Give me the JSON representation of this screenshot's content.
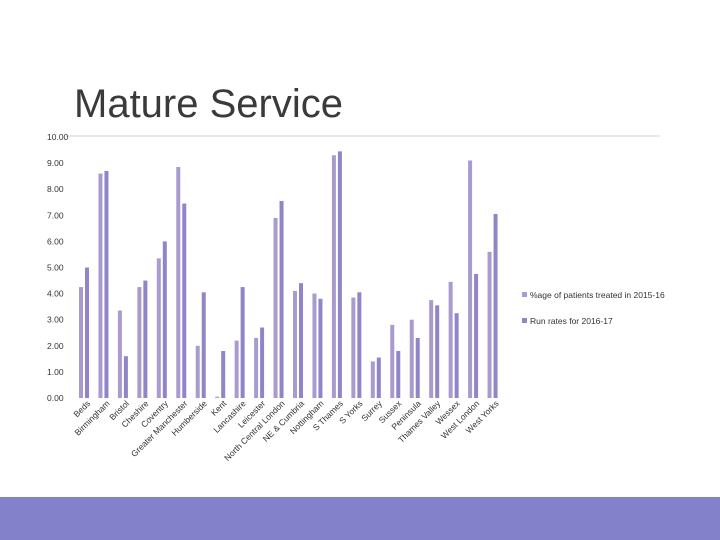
{
  "slide": {
    "title": "Mature Service",
    "footer_color": "#8381c9"
  },
  "chart_data": {
    "type": "bar",
    "title": "",
    "xlabel": "",
    "ylabel": "",
    "ylim": [
      0,
      10
    ],
    "yticks": [
      "0.00",
      "1.00",
      "2.00",
      "3.00",
      "4.00",
      "5.00",
      "6.00",
      "7.00",
      "8.00",
      "9.00",
      "10.00"
    ],
    "grid": false,
    "legend_position": "right",
    "categories": [
      "Beds",
      "Birmingham",
      "Bristol",
      "Cheshire",
      "Coventry",
      "Greater Manchester",
      "Humberside",
      "Kent",
      "Lancashire",
      "Leicester",
      "North Central London",
      "NE & Cumbria",
      "Nottingham",
      "S Thames",
      "S Yorks",
      "Surrey",
      "Sussex",
      "Peninsula",
      "Thames Valley",
      "Wessex",
      "West London",
      "West Yorks"
    ],
    "series": [
      {
        "name": "%age of patients treated in 2015-16",
        "color": "#a99bce",
        "values": [
          4.25,
          8.6,
          3.35,
          4.25,
          5.35,
          8.85,
          2.0,
          0.05,
          2.2,
          2.3,
          6.9,
          4.1,
          4.0,
          9.3,
          3.85,
          1.4,
          2.8,
          3.0,
          3.75,
          4.45,
          9.1,
          5.6
        ]
      },
      {
        "name": "Run rates for 2016-17",
        "color": "#8f85c8",
        "values": [
          5.0,
          8.7,
          1.6,
          4.5,
          6.0,
          7.45,
          4.05,
          1.8,
          4.25,
          2.7,
          7.55,
          4.4,
          3.8,
          9.45,
          4.05,
          1.55,
          1.8,
          2.3,
          3.55,
          3.25,
          4.75,
          7.05
        ]
      }
    ]
  }
}
